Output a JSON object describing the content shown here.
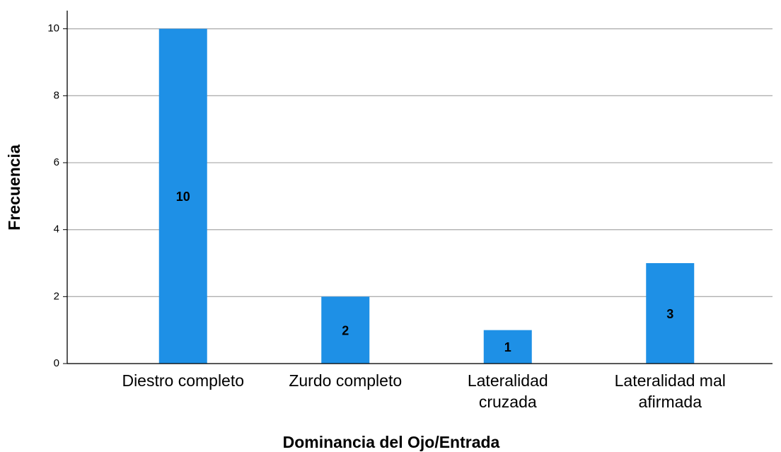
{
  "chart_data": {
    "type": "bar",
    "xlabel": "Dominancia del Ojo/Entrada",
    "ylabel": "Frecuencia",
    "categories": [
      "Diestro completo",
      "Zurdo completo",
      "Lateralidad cruzada",
      "Lateralidad mal afirmada"
    ],
    "values": [
      10,
      2,
      1,
      3
    ],
    "color": "#1e90e6",
    "ylim": [
      0,
      10.5
    ],
    "yticks": [
      0,
      2,
      4,
      6,
      8,
      10
    ],
    "grid": true
  }
}
